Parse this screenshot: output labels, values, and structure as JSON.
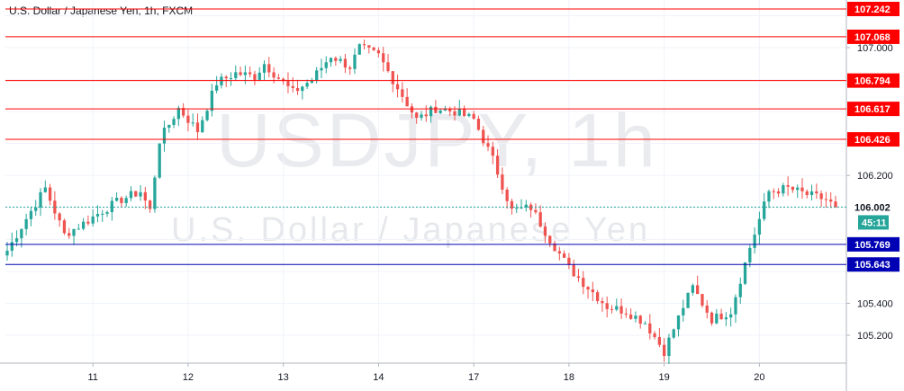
{
  "chart_data": {
    "type": "candlestick",
    "title": "U.S. Dollar / Japanese Yen, 1h, FXCM",
    "watermark_symbol": "USDJPY, 1h",
    "watermark_name": "U.S. Dollar / Japanese Yen",
    "ylim": [
      105.0,
      107.3
    ],
    "y_ticks": [
      "105.200",
      "105.400",
      "106.200",
      "107.000"
    ],
    "x_ticks": [
      "11",
      "12",
      "13",
      "14",
      "17",
      "18",
      "19",
      "20"
    ],
    "resistance_levels": [
      "107.242",
      "107.068",
      "106.794",
      "106.617",
      "106.426"
    ],
    "support_levels": [
      "105.769",
      "105.643"
    ],
    "last_price": "106.002",
    "countdown": "45:11",
    "grid": true,
    "colors": {
      "up": "#26a69a",
      "down": "#ef5350",
      "resistance": "#ff0000",
      "support": "#0000b4",
      "last": "#26a69a"
    },
    "path": [
      [
        0,
        105.73
      ],
      [
        4,
        105.93
      ],
      [
        8,
        106.12
      ],
      [
        12,
        105.83
      ],
      [
        16,
        105.9
      ],
      [
        20,
        105.98
      ],
      [
        24,
        106.05
      ],
      [
        28,
        106.1
      ],
      [
        30,
        105.98
      ],
      [
        32,
        106.42
      ],
      [
        36,
        106.62
      ],
      [
        40,
        106.48
      ],
      [
        44,
        106.78
      ],
      [
        48,
        106.84
      ],
      [
        52,
        106.82
      ],
      [
        54,
        106.9
      ],
      [
        56,
        106.84
      ],
      [
        60,
        106.72
      ],
      [
        64,
        106.8
      ],
      [
        68,
        106.95
      ],
      [
        72,
        106.88
      ],
      [
        74,
        107.0
      ],
      [
        78,
        106.95
      ],
      [
        82,
        106.75
      ],
      [
        86,
        106.55
      ],
      [
        90,
        106.62
      ],
      [
        94,
        106.6
      ],
      [
        98,
        106.55
      ],
      [
        102,
        106.3
      ],
      [
        106,
        105.98
      ],
      [
        110,
        106.0
      ],
      [
        114,
        105.8
      ],
      [
        118,
        105.62
      ],
      [
        122,
        105.5
      ],
      [
        126,
        105.38
      ],
      [
        130,
        105.35
      ],
      [
        134,
        105.28
      ],
      [
        138,
        105.1
      ],
      [
        142,
        105.38
      ],
      [
        144,
        105.5
      ],
      [
        148,
        105.3
      ],
      [
        152,
        105.35
      ],
      [
        156,
        105.75
      ],
      [
        160,
        106.1
      ],
      [
        164,
        106.12
      ],
      [
        168,
        106.08
      ],
      [
        172,
        106.05
      ],
      [
        174,
        106.0
      ]
    ]
  }
}
